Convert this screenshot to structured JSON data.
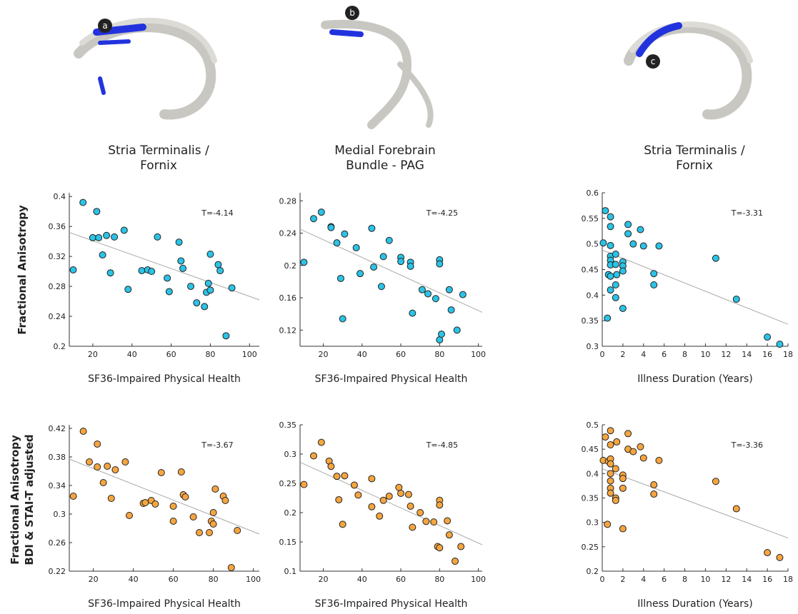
{
  "panels": [
    {
      "marker": "a",
      "title": [
        "Stria Terminalis /",
        "Fornix"
      ]
    },
    {
      "marker": "b",
      "title": [
        "Medial Forebrain",
        "Bundle - PAG"
      ]
    },
    {
      "marker": "c",
      "title": [
        "Stria Terminalis /",
        "Fornix"
      ]
    }
  ],
  "row_labels": [
    [
      "Fractional Anisotropy"
    ],
    [
      "Fractional Anisotropy",
      "BDI & STAI-T adjusted"
    ]
  ],
  "chart_data": [
    {
      "type": "scatter",
      "xlabel": "SF36-Impaired Physical Health",
      "annotation": "T=-4.14",
      "color": "#2bc3e6",
      "x": [
        10,
        15,
        20,
        22,
        23,
        25,
        27,
        29,
        31,
        36,
        38,
        45,
        48,
        50,
        53,
        58,
        59,
        64,
        65,
        66,
        70,
        73,
        77,
        78,
        79,
        80,
        80,
        84,
        85,
        88,
        91
      ],
      "values": [
        0.302,
        0.392,
        0.345,
        0.38,
        0.345,
        0.322,
        0.348,
        0.298,
        0.346,
        0.355,
        0.276,
        0.301,
        0.302,
        0.3,
        0.346,
        0.291,
        0.273,
        0.339,
        0.314,
        0.304,
        0.28,
        0.258,
        0.253,
        0.272,
        0.284,
        0.323,
        0.275,
        0.309,
        0.301,
        0.214,
        0.278
      ],
      "fit": {
        "x": [
          8,
          105
        ],
        "y": [
          0.352,
          0.262
        ]
      },
      "xlim": [
        8,
        105
      ],
      "ylim": [
        0.2,
        0.405
      ],
      "xticks": [
        20,
        40,
        60,
        80,
        100
      ],
      "yticks": [
        0.2,
        0.24,
        0.28,
        0.32,
        0.36,
        0.4
      ]
    },
    {
      "type": "scatter",
      "xlabel": "SF36-Impaired Physical Health",
      "annotation": "T=-4.25",
      "color": "#2bc3e6",
      "x": [
        10,
        15,
        19,
        24,
        24,
        27,
        29,
        30,
        31,
        37,
        39,
        45,
        46,
        50,
        51,
        54,
        60,
        60,
        65,
        65,
        66,
        71,
        74,
        78,
        80,
        80,
        80,
        81,
        85,
        86,
        89,
        92
      ],
      "values": [
        0.204,
        0.258,
        0.266,
        0.248,
        0.247,
        0.228,
        0.184,
        0.134,
        0.239,
        0.222,
        0.19,
        0.246,
        0.198,
        0.174,
        0.211,
        0.231,
        0.21,
        0.205,
        0.204,
        0.199,
        0.141,
        0.17,
        0.165,
        0.159,
        0.207,
        0.202,
        0.108,
        0.115,
        0.17,
        0.145,
        0.12,
        0.164
      ],
      "fit": {
        "x": [
          8,
          102
        ],
        "y": [
          0.245,
          0.142
        ]
      },
      "xlim": [
        8,
        102
      ],
      "ylim": [
        0.1,
        0.29
      ],
      "xticks": [
        20,
        40,
        60,
        80,
        100
      ],
      "yticks": [
        0.12,
        0.16,
        0.2,
        0.24,
        0.28
      ]
    },
    {
      "type": "scatter",
      "xlabel": "Illness Duration (Years)",
      "annotation": "T=-3.31",
      "color": "#2bc3e6",
      "x": [
        0.1,
        0.3,
        0.5,
        0.6,
        0.8,
        0.8,
        0.8,
        0.8,
        0.8,
        0.8,
        0.8,
        0.8,
        1.3,
        1.3,
        1.3,
        1.3,
        1.4,
        2,
        2,
        2,
        2,
        2.5,
        2.5,
        3,
        3.7,
        4,
        5,
        5,
        5.5,
        11,
        13,
        16,
        17.2
      ],
      "values": [
        0.502,
        0.565,
        0.355,
        0.44,
        0.553,
        0.534,
        0.497,
        0.476,
        0.468,
        0.459,
        0.437,
        0.41,
        0.48,
        0.46,
        0.42,
        0.395,
        0.44,
        0.465,
        0.457,
        0.447,
        0.374,
        0.538,
        0.52,
        0.5,
        0.528,
        0.496,
        0.442,
        0.42,
        0.496,
        0.472,
        0.392,
        0.318,
        0.304
      ],
      "fit": {
        "x": [
          0,
          18
        ],
        "y": [
          0.488,
          0.343
        ]
      },
      "xlim": [
        0,
        18
      ],
      "ylim": [
        0.3,
        0.6
      ],
      "xticks": [
        0,
        2,
        4,
        6,
        8,
        10,
        12,
        14,
        16,
        18
      ],
      "yticks": [
        0.3,
        0.35,
        0.4,
        0.45,
        0.5,
        0.55,
        0.6
      ]
    },
    {
      "type": "scatter",
      "xlabel": "SF36-Impaired Physical Health",
      "annotation": "T=-3.67",
      "color": "#f5a540",
      "x": [
        10,
        15,
        18,
        22,
        22,
        25,
        27,
        29,
        31,
        36,
        38,
        45,
        46,
        49,
        51,
        54,
        60,
        60,
        64,
        65,
        66,
        70,
        73,
        78,
        79,
        80,
        80,
        81,
        85,
        86,
        89,
        92
      ],
      "values": [
        0.325,
        0.416,
        0.373,
        0.398,
        0.366,
        0.344,
        0.367,
        0.322,
        0.362,
        0.373,
        0.298,
        0.315,
        0.316,
        0.319,
        0.314,
        0.358,
        0.311,
        0.29,
        0.359,
        0.327,
        0.324,
        0.296,
        0.274,
        0.274,
        0.29,
        0.302,
        0.286,
        0.335,
        0.325,
        0.319,
        0.225,
        0.277
      ],
      "fit": {
        "x": [
          8,
          103
        ],
        "y": [
          0.377,
          0.272
        ]
      },
      "xlim": [
        8,
        103
      ],
      "ylim": [
        0.22,
        0.425
      ],
      "xticks": [
        20,
        40,
        60,
        80,
        100
      ],
      "yticks": [
        0.22,
        0.26,
        0.3,
        0.34,
        0.38,
        0.42
      ]
    },
    {
      "type": "scatter",
      "xlabel": "SF36-Impaired Physical Health",
      "annotation": "T=-4.85",
      "color": "#f5a540",
      "x": [
        10,
        15,
        19,
        23,
        24,
        27,
        28,
        30,
        31,
        36,
        38,
        45,
        45,
        49,
        51,
        54,
        59,
        60,
        64,
        65,
        66,
        70,
        73,
        77,
        79,
        80,
        80,
        80,
        84,
        85,
        88,
        91
      ],
      "values": [
        0.248,
        0.297,
        0.32,
        0.288,
        0.279,
        0.262,
        0.222,
        0.18,
        0.263,
        0.247,
        0.23,
        0.258,
        0.21,
        0.194,
        0.221,
        0.228,
        0.243,
        0.233,
        0.231,
        0.211,
        0.175,
        0.2,
        0.185,
        0.184,
        0.142,
        0.221,
        0.213,
        0.14,
        0.186,
        0.162,
        0.117,
        0.142
      ],
      "fit": {
        "x": [
          8,
          102
        ],
        "y": [
          0.286,
          0.145
        ]
      },
      "xlim": [
        8,
        102
      ],
      "ylim": [
        0.1,
        0.35
      ],
      "xticks": [
        20,
        40,
        60,
        80,
        100
      ],
      "yticks": [
        0.1,
        0.15,
        0.2,
        0.25,
        0.3,
        0.35
      ]
    },
    {
      "type": "scatter",
      "xlabel": "Illness Duration (Years)",
      "annotation": "T=-3.36",
      "color": "#f5a540",
      "x": [
        0.1,
        0.3,
        0.5,
        0.6,
        0.8,
        0.8,
        0.8,
        0.8,
        0.8,
        0.8,
        0.8,
        0.8,
        1.3,
        1.3,
        1.3,
        1.4,
        2,
        2,
        2,
        2,
        2.5,
        2.5,
        3,
        3.7,
        4,
        5,
        5,
        5.5,
        11,
        13,
        16,
        17.2
      ],
      "values": [
        0.427,
        0.475,
        0.296,
        0.425,
        0.488,
        0.459,
        0.43,
        0.42,
        0.4,
        0.385,
        0.37,
        0.36,
        0.41,
        0.35,
        0.345,
        0.465,
        0.397,
        0.39,
        0.37,
        0.287,
        0.482,
        0.45,
        0.445,
        0.455,
        0.432,
        0.377,
        0.358,
        0.427,
        0.384,
        0.328,
        0.238,
        0.228
      ],
      "fit": {
        "x": [
          0,
          18
        ],
        "y": [
          0.41,
          0.268
        ]
      },
      "xlim": [
        0,
        18
      ],
      "ylim": [
        0.2,
        0.5
      ],
      "xticks": [
        0,
        2,
        4,
        6,
        8,
        10,
        12,
        14,
        16,
        18
      ],
      "yticks": [
        0.2,
        0.25,
        0.3,
        0.35,
        0.4,
        0.45,
        0.5
      ]
    }
  ]
}
